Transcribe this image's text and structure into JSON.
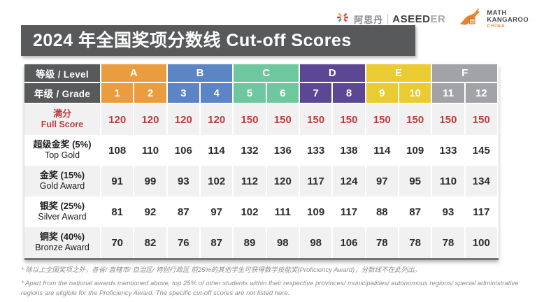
{
  "logos": {
    "aseeder": {
      "cn": "阿思丹",
      "brand_dark": "ASEED",
      "brand_light": "ER"
    },
    "math_kangaroo": {
      "line1": "MATH",
      "line2": "KANGAROO",
      "line3": "CHINA"
    }
  },
  "title": "2024 年全国奖项分数线 Cut-off Scores",
  "table": {
    "level_label": "等级 / Level",
    "grade_label": "年级 / Grade",
    "levels": [
      {
        "name": "A",
        "color": "#ea9d3e",
        "grades": [
          "1",
          "2"
        ]
      },
      {
        "name": "B",
        "color": "#5c85c6",
        "grades": [
          "3",
          "4"
        ]
      },
      {
        "name": "C",
        "color": "#6fc7a0",
        "grades": [
          "5",
          "6"
        ]
      },
      {
        "name": "D",
        "color": "#5c4795",
        "grades": [
          "7",
          "8"
        ]
      },
      {
        "name": "E",
        "color": "#eacb31",
        "grades": [
          "9",
          "10"
        ]
      },
      {
        "name": "F",
        "color": "#a2a3a7",
        "grades": [
          "11",
          "12"
        ]
      }
    ],
    "rows": [
      {
        "label_cn": "满分",
        "label_en": "Full Score",
        "highlight": true,
        "values": [
          "120",
          "120",
          "120",
          "120",
          "150",
          "150",
          "150",
          "150",
          "150",
          "150",
          "150",
          "150"
        ]
      },
      {
        "label_cn": "超级金奖 (5%)",
        "label_en": "Top Gold",
        "highlight": false,
        "values": [
          "108",
          "110",
          "106",
          "114",
          "132",
          "136",
          "133",
          "138",
          "114",
          "109",
          "133",
          "145"
        ]
      },
      {
        "label_cn": "金奖 (15%)",
        "label_en": "Gold Award",
        "highlight": false,
        "values": [
          "91",
          "99",
          "93",
          "102",
          "112",
          "120",
          "117",
          "124",
          "97",
          "95",
          "110",
          "134"
        ]
      },
      {
        "label_cn": "银奖 (25%)",
        "label_en": "Silver Award",
        "highlight": false,
        "values": [
          "81",
          "92",
          "87",
          "97",
          "102",
          "111",
          "109",
          "117",
          "88",
          "87",
          "93",
          "117"
        ]
      },
      {
        "label_cn": "铜奖 (40%)",
        "label_en": "Bronze Award",
        "highlight": false,
        "values": [
          "70",
          "82",
          "76",
          "87",
          "89",
          "98",
          "98",
          "106",
          "78",
          "78",
          "78",
          "100"
        ]
      }
    ]
  },
  "footnotes": [
    "* 除以上全国奖项之外，各省/ 直辖市/ 自治区/ 特别行政区 前25%的其他学生可获得数学技能奖(Proficiency Award)，分数线不在此列出。",
    "* Apart from the national awards mentioned above, top 25% of other students within their respective provinces/ municipalities/ autonomous regions/ special administrative regions are eligible for the Proficiency Award. The specific cut-off scores are not listed here."
  ],
  "colors": {
    "title_bar": "#58595b",
    "header_label_bg": "#58595b",
    "full_score_red": "#be3c3c",
    "stripe": "#f1f1f2",
    "kangaroo_orange": "#e8832c"
  }
}
